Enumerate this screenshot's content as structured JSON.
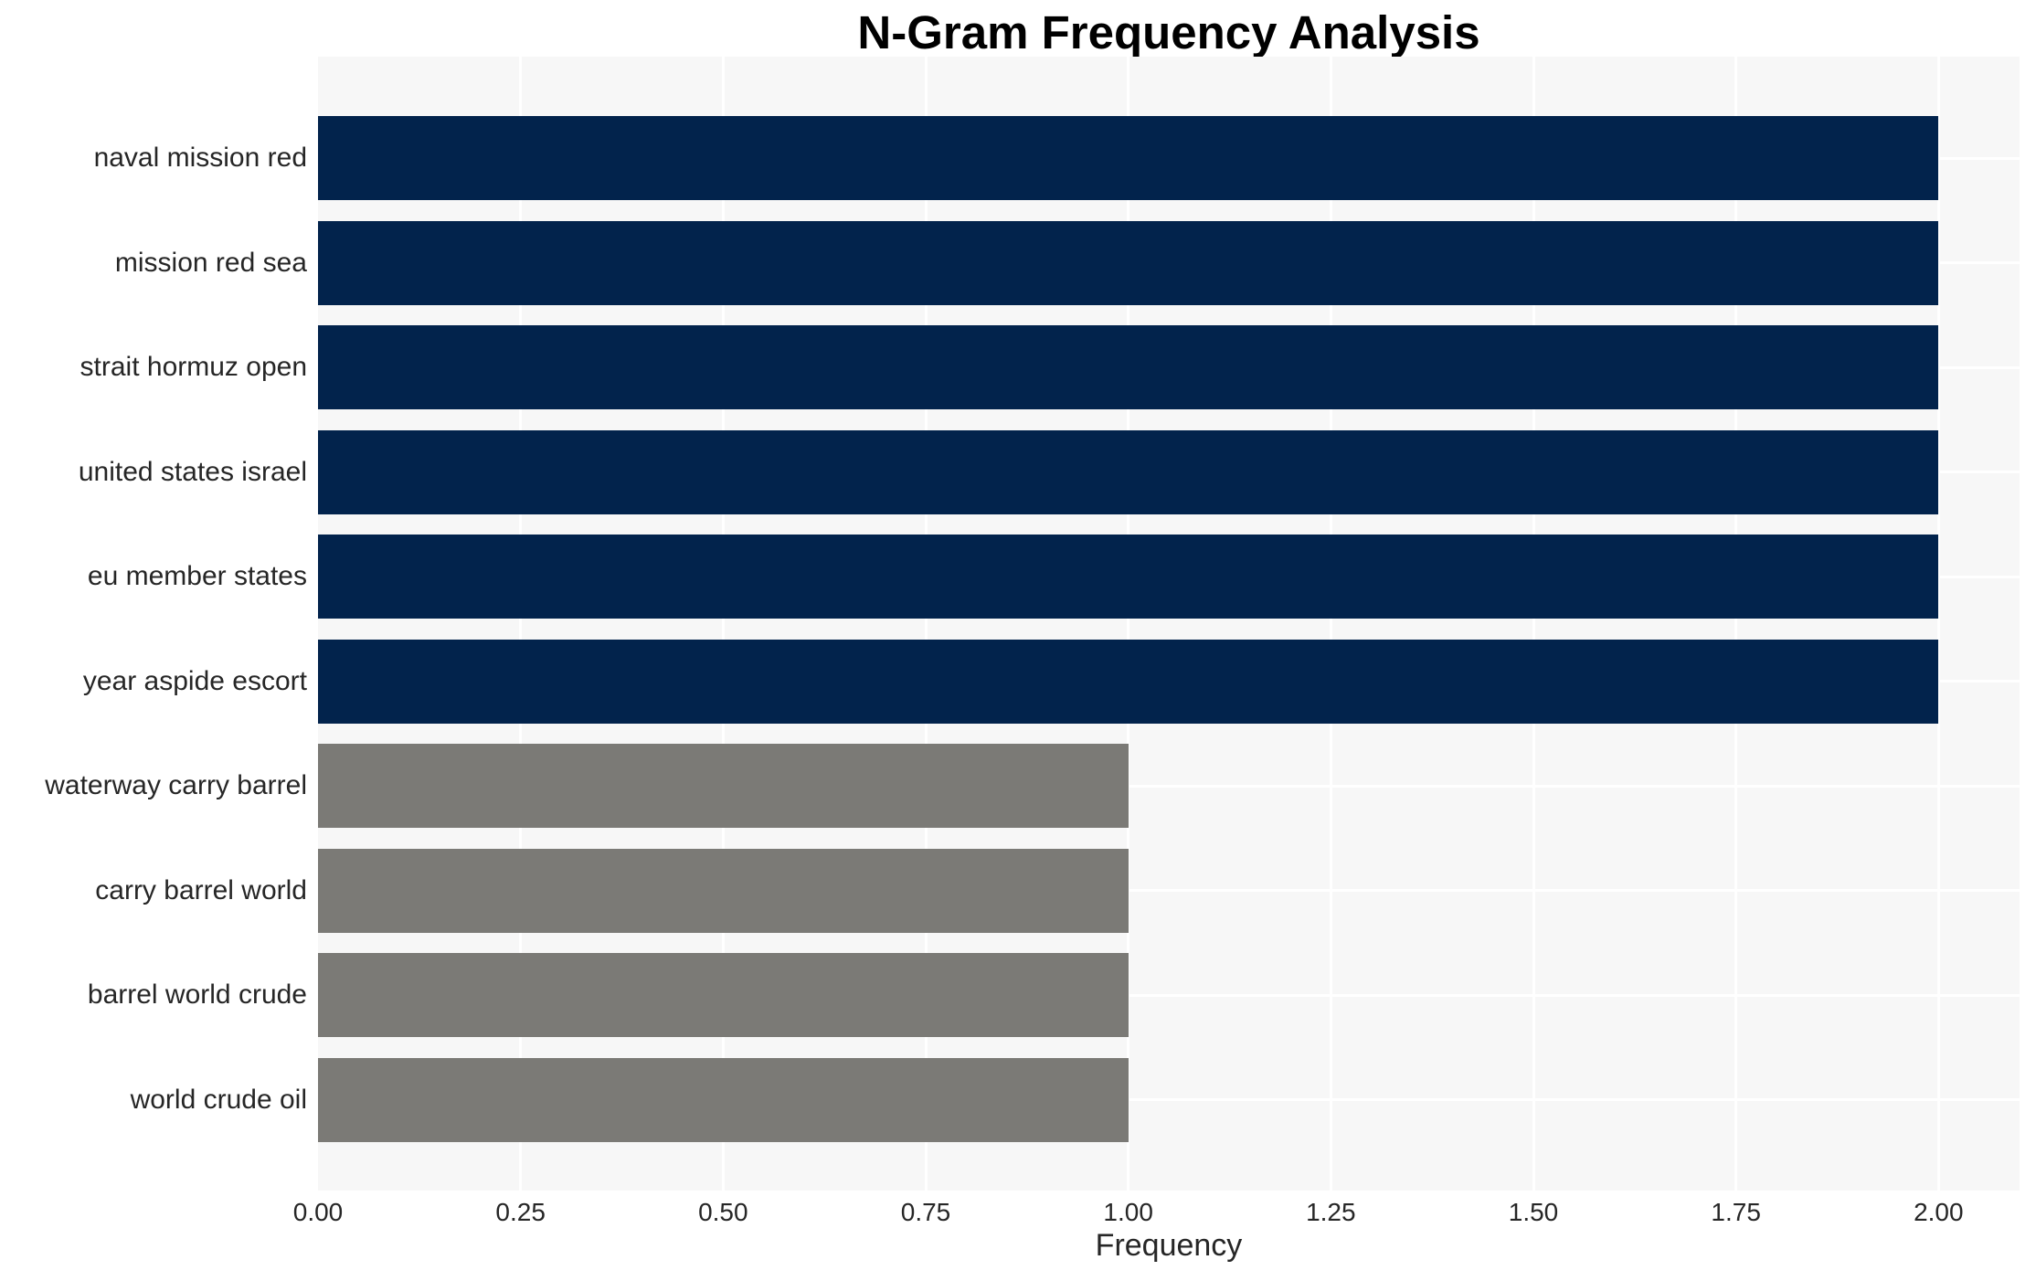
{
  "chart_data": {
    "type": "bar",
    "orientation": "horizontal",
    "title": "N-Gram Frequency Analysis",
    "xlabel": "Frequency",
    "ylabel": "",
    "categories": [
      "naval mission red",
      "mission red sea",
      "strait hormuz open",
      "united states israel",
      "eu member states",
      "year aspide escort",
      "waterway carry barrel",
      "carry barrel world",
      "barrel world crude",
      "world crude oil"
    ],
    "values": [
      2,
      2,
      2,
      2,
      2,
      2,
      1,
      1,
      1,
      1
    ],
    "bar_colors": [
      "#02234c",
      "#02234c",
      "#02234c",
      "#02234c",
      "#02234c",
      "#02234c",
      "#7b7a76",
      "#7b7a76",
      "#7b7a76",
      "#7b7a76"
    ],
    "color_legend": {
      "frequency_2_color": "#02234c",
      "frequency_1_color": "#7b7a76"
    },
    "xlim": [
      0,
      2.1
    ],
    "xtick_values": [
      0,
      0.25,
      0.5,
      0.75,
      1.0,
      1.25,
      1.5,
      1.75,
      2.0
    ],
    "xtick_labels": [
      "0.00",
      "0.25",
      "0.50",
      "0.75",
      "1.00",
      "1.25",
      "1.50",
      "1.75",
      "2.00"
    ],
    "grid": true,
    "grid_color": "#ffffff",
    "plot_background": "#f7f7f7",
    "text_color": "#262626",
    "legend_shown": false
  }
}
